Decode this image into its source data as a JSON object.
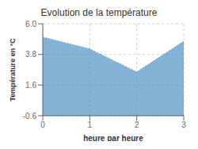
{
  "chart_data": {
    "type": "area",
    "title": "Evolution de la température",
    "xlabel": "heure par heure",
    "ylabel": "Température en °C",
    "x": [
      0,
      1,
      2,
      3
    ],
    "values": [
      5.05,
      4.2,
      2.55,
      4.75
    ],
    "xlim": [
      0,
      3
    ],
    "ylim": [
      -0.6,
      6.0
    ],
    "xticks": [
      0,
      1,
      2,
      3
    ],
    "yticks": [
      -0.6,
      1.6,
      3.8,
      {
        "value": 6.0,
        "label": "6.0"
      }
    ],
    "grid": true,
    "line_style": "dotted"
  }
}
